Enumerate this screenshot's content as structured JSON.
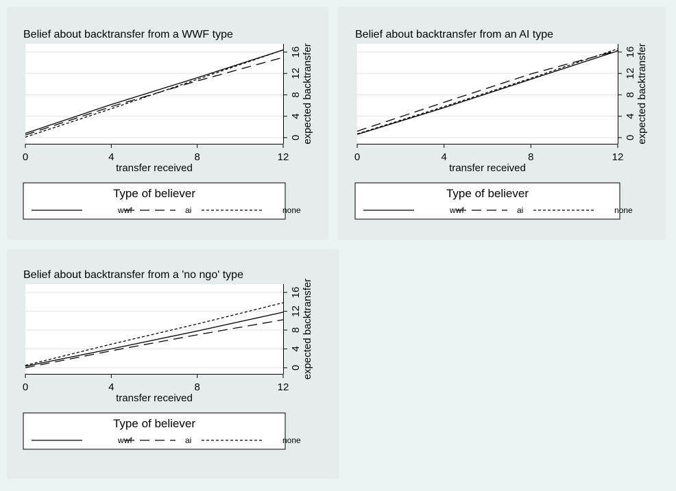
{
  "colors": {
    "page_bg": "#eaf2f3",
    "panel_bg": "#e6ecec",
    "plot_bg": "#ffffff",
    "grid": "#e1e6e6",
    "line": "#000000"
  },
  "legend_title": "Type of believer",
  "legend_items": [
    {
      "label": "wwf",
      "dash": "solid"
    },
    {
      "label": "ai",
      "dash": "long-dash"
    },
    {
      "label": "none",
      "dash": "short-dash"
    }
  ],
  "chart_data": [
    {
      "type": "line",
      "title": "Belief about backtransfer from a WWF type",
      "xlabel": "transfer received",
      "ylabel": "expected backtransfer",
      "x_ticks": [
        "0",
        "4",
        "8",
        "12"
      ],
      "y_ticks": [
        "0",
        "4",
        "8",
        "12",
        "16"
      ],
      "xlim": [
        0,
        12
      ],
      "ylim": [
        0,
        16
      ],
      "grid": true,
      "legend_position": "bottom",
      "series": [
        {
          "name": "wwf",
          "x": [
            0,
            4,
            8,
            12
          ],
          "values": [
            0.8,
            6.2,
            11.2,
            16.4
          ]
        },
        {
          "name": "ai",
          "x": [
            0,
            4,
            8,
            12
          ],
          "values": [
            0.5,
            5.8,
            10.6,
            15.0
          ]
        },
        {
          "name": "none",
          "x": [
            0,
            4,
            8,
            12
          ],
          "values": [
            0.1,
            5.4,
            10.9,
            16.4
          ]
        }
      ]
    },
    {
      "type": "line",
      "title": "Belief about backtransfer from an AI type",
      "xlabel": "transfer received",
      "ylabel": "expected backtransfer",
      "x_ticks": [
        "0",
        "4",
        "8",
        "12"
      ],
      "y_ticks": [
        "0",
        "4",
        "8",
        "12",
        "16"
      ],
      "xlim": [
        0,
        12
      ],
      "ylim": [
        0,
        16
      ],
      "grid": true,
      "legend_position": "bottom",
      "series": [
        {
          "name": "wwf",
          "x": [
            0,
            4,
            8,
            12
          ],
          "values": [
            0.6,
            5.6,
            10.9,
            16.2
          ]
        },
        {
          "name": "ai",
          "x": [
            0,
            4,
            8,
            12
          ],
          "values": [
            1.2,
            6.6,
            11.9,
            16.3
          ]
        },
        {
          "name": "none",
          "x": [
            0,
            4,
            8,
            12
          ],
          "values": [
            0.7,
            5.8,
            11.1,
            16.6
          ]
        }
      ]
    },
    {
      "type": "line",
      "title": "Belief about backtransfer from a 'no ngo' type",
      "xlabel": "transfer received",
      "ylabel": "expected backtransfer",
      "x_ticks": [
        "0",
        "4",
        "8",
        "12"
      ],
      "y_ticks": [
        "0",
        "4",
        "8",
        "12",
        "16"
      ],
      "xlim": [
        0,
        12
      ],
      "ylim": [
        0,
        16
      ],
      "grid": true,
      "legend_position": "bottom",
      "series": [
        {
          "name": "wwf",
          "x": [
            0,
            4,
            8,
            12
          ],
          "values": [
            0.3,
            4.0,
            7.8,
            11.8
          ]
        },
        {
          "name": "ai",
          "x": [
            0,
            4,
            8,
            12
          ],
          "values": [
            0.0,
            3.6,
            7.0,
            10.2
          ]
        },
        {
          "name": "none",
          "x": [
            0,
            4,
            8,
            12
          ],
          "values": [
            0.5,
            5.0,
            9.3,
            13.8
          ]
        }
      ]
    }
  ]
}
